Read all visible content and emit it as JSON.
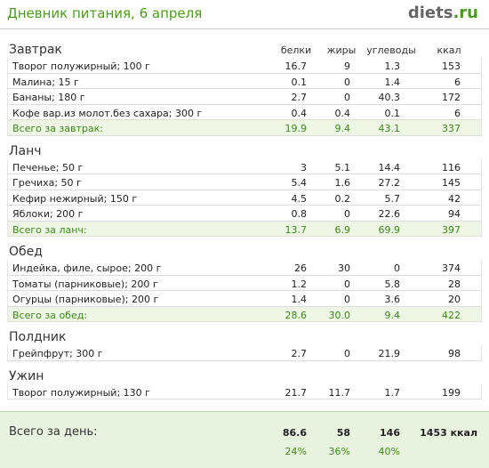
{
  "header": {
    "title": "Дневник питания, 6 апреля",
    "logo_main": "diets",
    "logo_suffix": ".ru"
  },
  "columns": [
    "белки",
    "жиры",
    "углеводы",
    "ккал"
  ],
  "meals": [
    {
      "name": "Завтрак",
      "rows": [
        {
          "food": "Творог полужирный; 100 г",
          "values": [
            "16.7",
            "9",
            "1.3",
            "153"
          ]
        },
        {
          "food": "Малина; 15 г",
          "values": [
            "0.1",
            "0",
            "1.4",
            "6"
          ]
        },
        {
          "food": "Бананы; 180 г",
          "values": [
            "2.7",
            "0",
            "40.3",
            "172"
          ]
        },
        {
          "food": "Кофе вар.из молот.без сахара; 300 г",
          "values": [
            "0.4",
            "0.4",
            "0.1",
            "6"
          ]
        }
      ],
      "total": {
        "label": "Всего за завтрак:",
        "values": [
          "19.9",
          "9.4",
          "43.1",
          "337"
        ]
      }
    },
    {
      "name": "Ланч",
      "rows": [
        {
          "food": "Печенье; 50 г",
          "values": [
            "3",
            "5.1",
            "14.4",
            "116"
          ]
        },
        {
          "food": "Гречиха; 50 г",
          "values": [
            "5.4",
            "1.6",
            "27.2",
            "145"
          ]
        },
        {
          "food": "Кефир нежирный; 150 г",
          "values": [
            "4.5",
            "0.2",
            "5.7",
            "42"
          ]
        },
        {
          "food": "Яблоки; 200 г",
          "values": [
            "0.8",
            "0",
            "22.6",
            "94"
          ]
        }
      ],
      "total": {
        "label": "Всего за ланч:",
        "values": [
          "13.7",
          "6.9",
          "69.9",
          "397"
        ]
      }
    },
    {
      "name": "Обед",
      "rows": [
        {
          "food": "Индейка, филе, сырое; 200 г",
          "values": [
            "26",
            "30",
            "0",
            "374"
          ]
        },
        {
          "food": "Томаты (парниковые); 200 г",
          "values": [
            "1.2",
            "0",
            "5.8",
            "28"
          ]
        },
        {
          "food": "Огурцы (парниковые); 200 г",
          "values": [
            "1.4",
            "0",
            "3.6",
            "20"
          ]
        }
      ],
      "total": {
        "label": "Всего за обед:",
        "values": [
          "28.6",
          "30.0",
          "9.4",
          "422"
        ]
      }
    },
    {
      "name": "Полдник",
      "rows": [
        {
          "food": "Грейпфрут; 300 г",
          "values": [
            "2.7",
            "0",
            "21.9",
            "98"
          ]
        }
      ]
    },
    {
      "name": "Ужин",
      "rows": [
        {
          "food": "Творог полужирный; 130 г",
          "values": [
            "21.7",
            "11.7",
            "1.7",
            "199"
          ]
        }
      ]
    }
  ],
  "footer": {
    "label": "Всего за день:",
    "values": [
      "86.6",
      "58",
      "146",
      "1453 ккал"
    ],
    "percents": [
      "24%",
      "36%",
      "40%"
    ]
  }
}
